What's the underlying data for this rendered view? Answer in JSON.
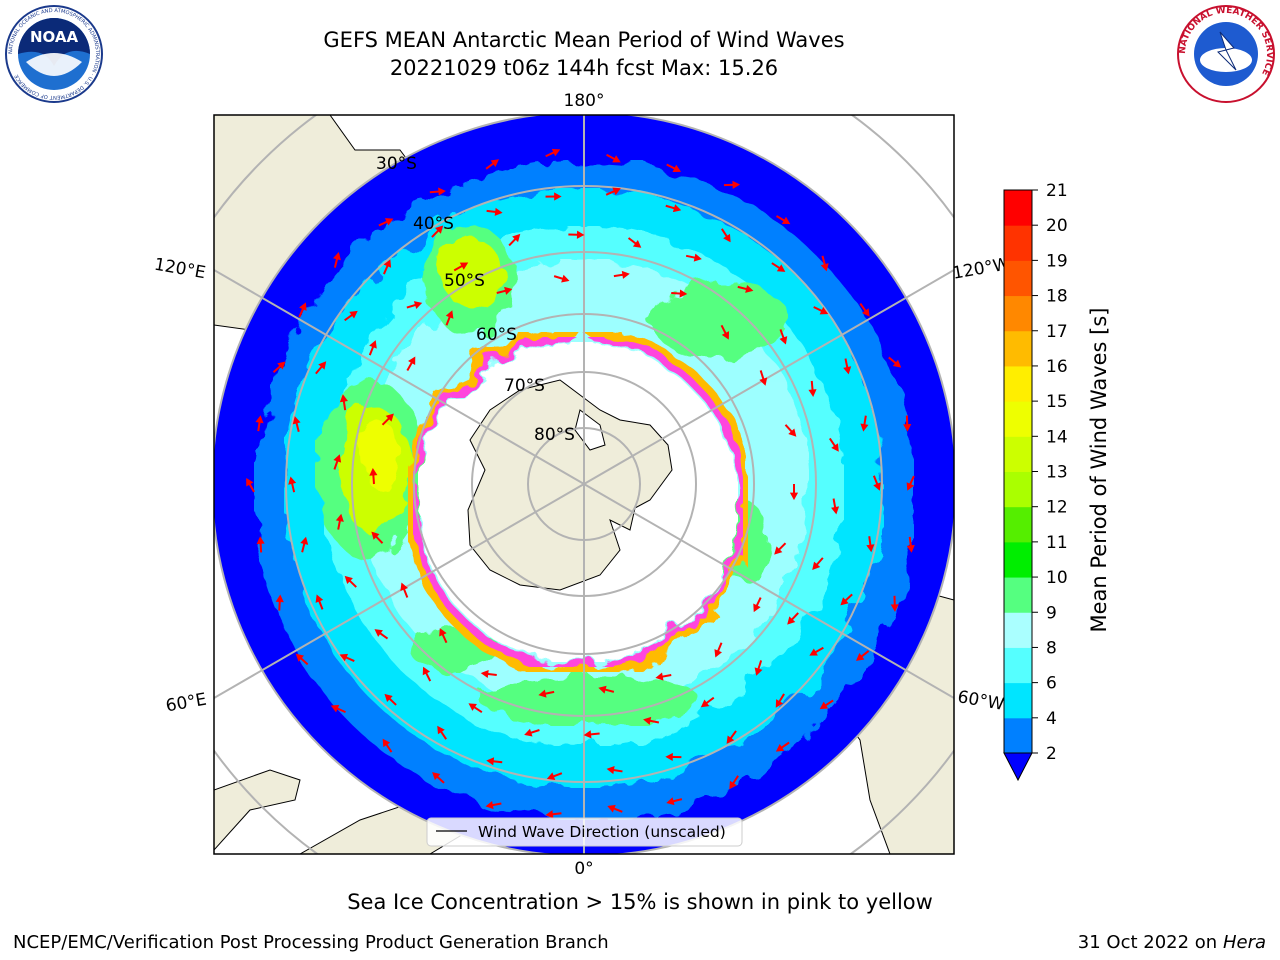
{
  "header": {
    "title_line1": "GEFS MEAN Antarctic Mean Period of Wind Waves",
    "title_line2": "20221029 t06z 144h fcst   Max: 15.26"
  },
  "logos": {
    "left_icon": "noaa-logo-icon",
    "left_text": "NOAA",
    "left_ring_text": "NATIONAL OCEANIC AND ATMOSPHERIC ADMINISTRATION · U.S. DEPARTMENT OF COMMERCE",
    "right_icon": "nws-logo-icon",
    "right_ring_text": "NATIONAL WEATHER SERVICE"
  },
  "map": {
    "projection": "south-polar-stereographic",
    "longitude_labels": {
      "top": "180°",
      "bottom": "0°",
      "upper_left": "120°E",
      "lower_left": "60°E",
      "upper_right": "120°W",
      "lower_right": "60°W"
    },
    "latitude_labels": [
      "30°S",
      "40°S",
      "50°S",
      "60°S",
      "70°S",
      "80°S"
    ],
    "legend_label": "Wind Wave Direction (unscaled)",
    "colors": {
      "land": "#efedda",
      "sea_ice": "#ffffff",
      "ice_edge": "#ff44dd",
      "arrow": "#ff0000"
    }
  },
  "colorbar": {
    "label": "Mean Period of Wind Waves [s]",
    "ticks": [
      "2",
      "4",
      "6",
      "8",
      "9",
      "10",
      "11",
      "12",
      "13",
      "14",
      "15",
      "16",
      "17",
      "18",
      "19",
      "20",
      "21"
    ],
    "under_color": "#0000ff",
    "colors": [
      "#0080ff",
      "#00e5ff",
      "#55ffff",
      "#aaffff",
      "#55ff80",
      "#00ee00",
      "#55ee00",
      "#aaff00",
      "#ccff00",
      "#eeff00",
      "#ffee00",
      "#ffbb00",
      "#ff8800",
      "#ff5500",
      "#ff3300",
      "#ff0000"
    ]
  },
  "captions": {
    "sea_ice_note": "Sea Ice Concentration > 15% is shown in pink to yellow",
    "footer_left": "NCEP/EMC/Verification Post Processing Product Generation Branch",
    "footer_date": "31 Oct 2022 on ",
    "footer_machine": "Hera"
  }
}
